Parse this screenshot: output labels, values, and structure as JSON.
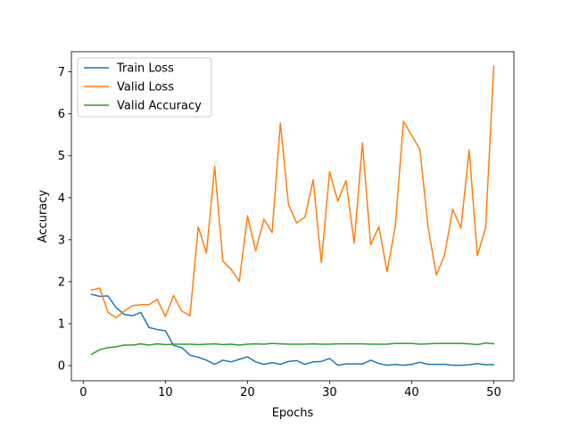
{
  "chart_data": {
    "type": "line",
    "xlabel": "Epochs",
    "ylabel": "Accuracy",
    "xlim": [
      -1.45,
      52.45
    ],
    "ylim": [
      -0.36,
      7.48
    ],
    "xticks": [
      0,
      10,
      20,
      30,
      40,
      50
    ],
    "yticks": [
      0,
      1,
      2,
      3,
      4,
      5,
      6,
      7
    ],
    "grid": false,
    "legend_position": "top-left",
    "x": [
      1,
      2,
      3,
      4,
      5,
      6,
      7,
      8,
      9,
      10,
      11,
      12,
      13,
      14,
      15,
      16,
      17,
      18,
      19,
      20,
      21,
      22,
      23,
      24,
      25,
      26,
      27,
      28,
      29,
      30,
      31,
      32,
      33,
      34,
      35,
      36,
      37,
      38,
      39,
      40,
      41,
      42,
      43,
      44,
      45,
      46,
      47,
      48,
      49,
      50
    ],
    "series": [
      {
        "name": "Train Loss",
        "color": "#1f77b4",
        "values": [
          1.7,
          1.65,
          1.66,
          1.38,
          1.22,
          1.19,
          1.27,
          0.91,
          0.86,
          0.83,
          0.48,
          0.43,
          0.25,
          0.2,
          0.13,
          0.03,
          0.13,
          0.09,
          0.15,
          0.21,
          0.09,
          0.03,
          0.07,
          0.03,
          0.1,
          0.12,
          0.03,
          0.09,
          0.1,
          0.17,
          0.01,
          0.04,
          0.04,
          0.04,
          0.13,
          0.05,
          0.01,
          0.03,
          0.01,
          0.03,
          0.08,
          0.03,
          0.03,
          0.03,
          0.01,
          0.01,
          0.02,
          0.05,
          0.02,
          0.03
        ]
      },
      {
        "name": "Valid Loss",
        "color": "#ff7f0e",
        "values": [
          1.8,
          1.85,
          1.27,
          1.14,
          1.3,
          1.43,
          1.45,
          1.45,
          1.58,
          1.17,
          1.67,
          1.3,
          1.19,
          3.31,
          2.68,
          4.75,
          2.49,
          2.3,
          2.01,
          3.57,
          2.73,
          3.49,
          3.17,
          5.78,
          3.83,
          3.4,
          3.54,
          4.43,
          2.45,
          4.62,
          3.92,
          4.41,
          2.92,
          5.31,
          2.88,
          3.31,
          2.24,
          3.31,
          5.82,
          5.49,
          5.15,
          3.31,
          2.16,
          2.63,
          3.73,
          3.28,
          5.14,
          2.62,
          3.28,
          7.13
        ]
      },
      {
        "name": "Valid Accuracy",
        "color": "#2ca02c",
        "values": [
          0.27,
          0.38,
          0.43,
          0.45,
          0.49,
          0.49,
          0.52,
          0.49,
          0.52,
          0.5,
          0.51,
          0.51,
          0.51,
          0.5,
          0.51,
          0.52,
          0.5,
          0.51,
          0.49,
          0.51,
          0.52,
          0.51,
          0.53,
          0.52,
          0.51,
          0.51,
          0.51,
          0.52,
          0.51,
          0.51,
          0.52,
          0.52,
          0.52,
          0.52,
          0.51,
          0.51,
          0.51,
          0.53,
          0.53,
          0.53,
          0.51,
          0.52,
          0.53,
          0.53,
          0.53,
          0.53,
          0.52,
          0.5,
          0.54,
          0.52
        ]
      }
    ]
  }
}
